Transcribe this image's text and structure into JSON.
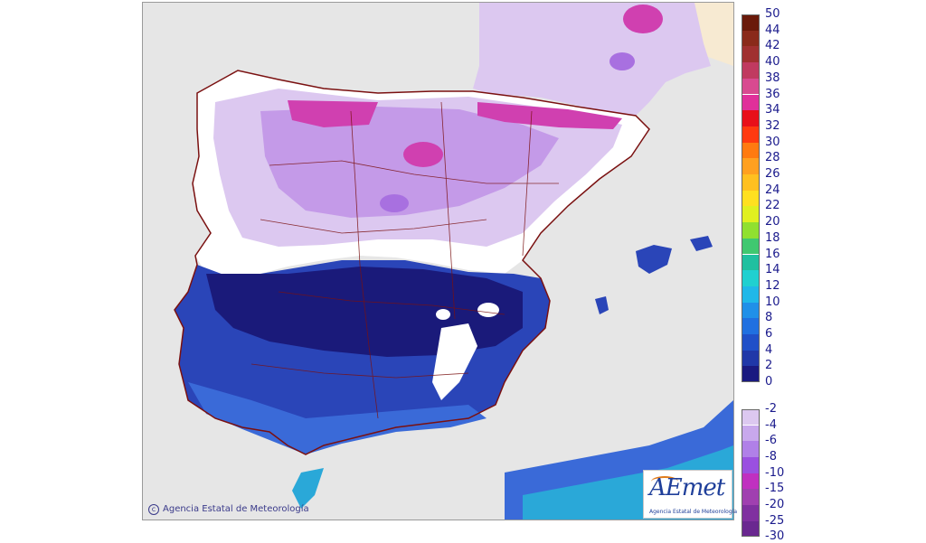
{
  "map": {
    "colors": {
      "sea": "#e6e6e6",
      "france": "#f7ead2",
      "border": "#7a1010",
      "white_zone": "#ffffff",
      "light_violet": "#dcc8f0",
      "violet": "#c49ae8",
      "purple": "#a870e0",
      "magenta": "#d040b0",
      "navy": "#1a1a7a",
      "blue": "#2a45b8",
      "mid_blue": "#3a6ad8",
      "cyan": "#2aa8d8"
    }
  },
  "legend": {
    "labels": [
      "50",
      "44",
      "42",
      "40",
      "38",
      "36",
      "34",
      "32",
      "30",
      "28",
      "26",
      "24",
      "22",
      "20",
      "18",
      "16",
      "14",
      "12",
      "10",
      "8",
      "6",
      "4",
      "2",
      "0",
      "-2",
      "-4",
      "-6",
      "-8",
      "-10",
      "-15",
      "-20",
      "-25",
      "-30"
    ],
    "colors": [
      "#6a1a0a",
      "#8a2a1a",
      "#a03030",
      "#c03a60",
      "#d84a90",
      "#e0309a",
      "#e8101a",
      "#ff3a10",
      "#ff7a10",
      "#ffa020",
      "#ffc020",
      "#ffe020",
      "#e0f020",
      "#90e030",
      "#40c870",
      "#20c0a0",
      "#20d0d0",
      "#20b8e8",
      "#2090e8",
      "#2070e0",
      "#2050c8",
      "#2038a8",
      "#1a1a80",
      "#f0e8f8",
      "#dcc8f0",
      "#c8a8ec",
      "#b080e8",
      "#9a50e0",
      "#c030c0",
      "#a040b0",
      "#8030a0",
      "#6a2890"
    ]
  },
  "copyright": "Agencia Estatal de Meteorología",
  "logo": {
    "brand": "AEmet",
    "subtitle": "Agencia Estatal de Meteorología"
  }
}
